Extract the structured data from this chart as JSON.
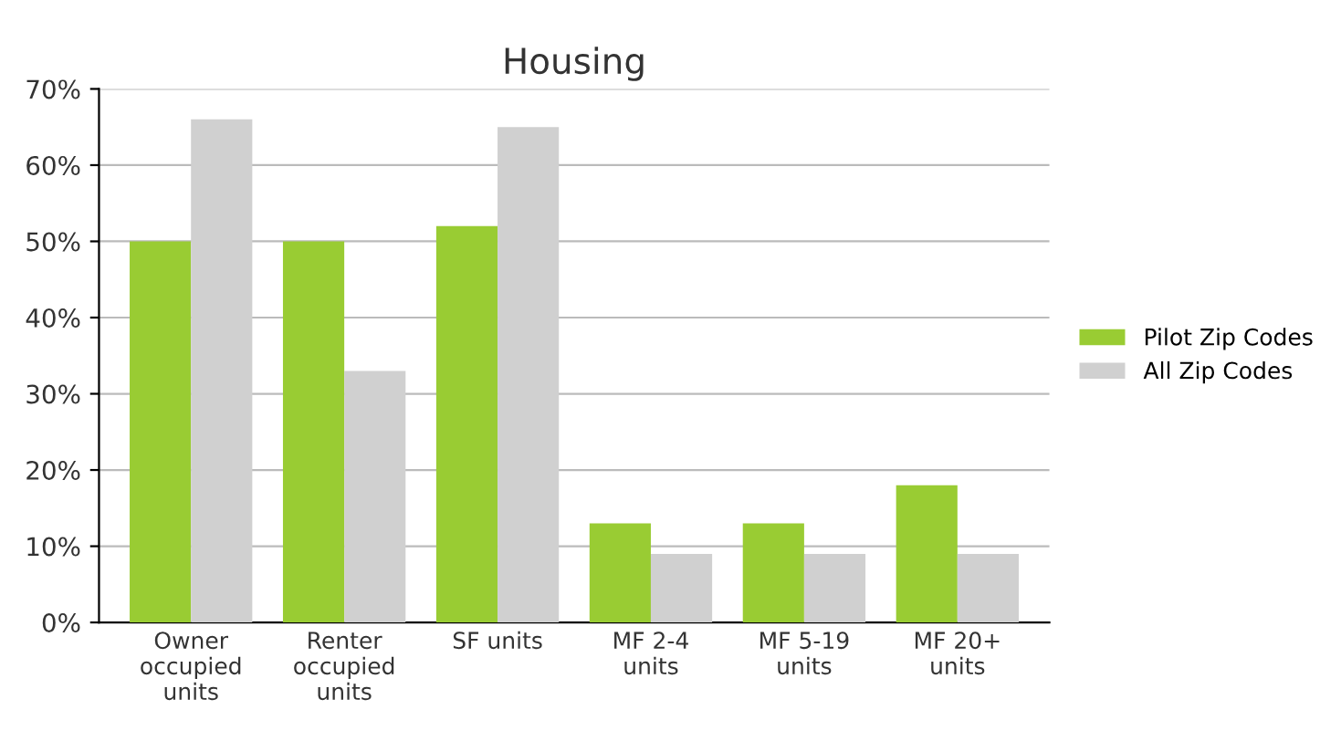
{
  "chart_data": {
    "type": "bar",
    "title": "Housing",
    "categories": [
      "Owner\noccupied\nunits",
      "Renter\noccupied\nunits",
      "SF units",
      "MF 2-4\nunits",
      "MF 5-19\nunits",
      "MF 20+\nunits"
    ],
    "series": [
      {
        "name": "Pilot Zip Codes",
        "color": "#99cc33",
        "values": [
          50,
          50,
          52,
          13,
          13,
          18
        ]
      },
      {
        "name": "All Zip Codes",
        "color": "#d0d0d0",
        "values": [
          66,
          33,
          65,
          9,
          9,
          9
        ]
      }
    ],
    "ylim": [
      0,
      70
    ],
    "yticks": [
      {
        "value": 0,
        "label": "0%"
      },
      {
        "value": 10,
        "label": "10%"
      },
      {
        "value": 20,
        "label": "20%"
      },
      {
        "value": 30,
        "label": "30%"
      },
      {
        "value": 40,
        "label": "40%"
      },
      {
        "value": 50,
        "label": "50%"
      },
      {
        "value": 60,
        "label": "60%"
      },
      {
        "value": 70,
        "label": "70%"
      }
    ],
    "grid": "y",
    "legend": "right"
  }
}
